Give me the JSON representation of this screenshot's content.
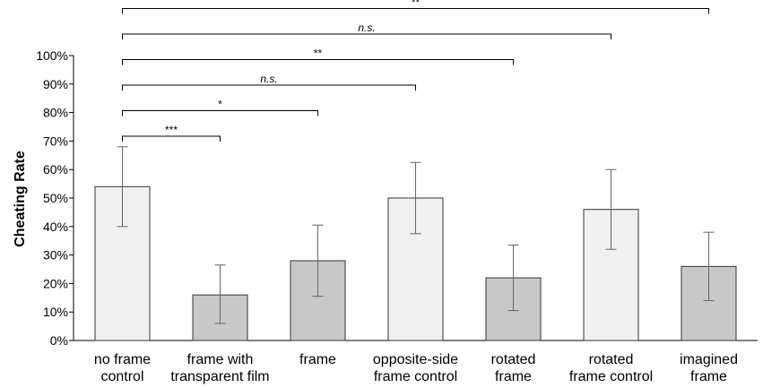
{
  "chart_data": {
    "type": "bar",
    "ylabel": "Cheating Rate",
    "ylim": [
      0,
      100
    ],
    "yticks": [
      "0%",
      "10%",
      "20%",
      "30%",
      "40%",
      "50%",
      "60%",
      "70%",
      "80%",
      "90%",
      "100%"
    ],
    "categories": [
      [
        "no frame",
        "control"
      ],
      [
        "frame with",
        "transparent film"
      ],
      [
        "frame"
      ],
      [
        "opposite-side",
        "frame control"
      ],
      [
        "rotated",
        "frame"
      ],
      [
        "rotated",
        "frame control"
      ],
      [
        "imagined",
        "frame"
      ]
    ],
    "values": [
      54,
      16,
      28,
      50,
      22,
      46,
      26
    ],
    "error_low": [
      40,
      6,
      15.5,
      37.5,
      10.5,
      32,
      14
    ],
    "error_high": [
      68,
      26.5,
      40.5,
      62.5,
      33.5,
      60,
      38
    ],
    "colors": [
      "#f0f0f0",
      "#c8c8c8",
      "#c8c8c8",
      "#f0f0f0",
      "#c8c8c8",
      "#f0f0f0",
      "#c8c8c8"
    ],
    "comparisons": [
      {
        "from": 0,
        "to": 1,
        "label": "***",
        "italic": false
      },
      {
        "from": 0,
        "to": 2,
        "label": "*",
        "italic": false
      },
      {
        "from": 0,
        "to": 3,
        "label": "n.s.",
        "italic": true
      },
      {
        "from": 0,
        "to": 4,
        "label": "**",
        "italic": false
      },
      {
        "from": 0,
        "to": 5,
        "label": "n.s.",
        "italic": true
      },
      {
        "from": 0,
        "to": 6,
        "label": "**",
        "italic": false
      }
    ]
  }
}
